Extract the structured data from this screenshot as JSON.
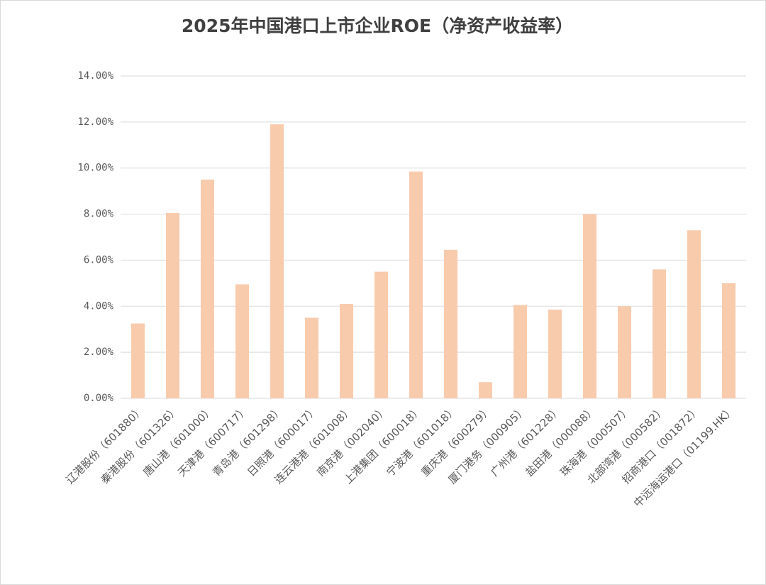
{
  "chart_data": {
    "type": "bar",
    "title": "2025年中国港口上市企业ROE（净资产收益率）",
    "categories": [
      "辽港股份（601880）",
      "秦港股份（601326）",
      "唐山港（601000）",
      "天津港（600717）",
      "青岛港（601298）",
      "日照港（600017）",
      "连云港港（601008）",
      "南京港（002040）",
      "上港集团（600018）",
      "宁波港（601018）",
      "重庆港（600279）",
      "厦门港务（000905）",
      "广州港（601228）",
      "盐田港（000088）",
      "珠海港（000507）",
      "北部湾港（000582）",
      "招商港口（001872）",
      "中远海运港口（01199.HK）"
    ],
    "values": [
      3.25,
      8.05,
      9.5,
      4.95,
      11.9,
      3.5,
      4.1,
      5.5,
      9.85,
      6.45,
      0.7,
      4.05,
      3.85,
      8.0,
      4.0,
      5.6,
      7.3,
      5.0
    ],
    "color": "#f8cbad",
    "ylim": [
      0,
      14
    ],
    "yticks": [
      {
        "value": 0,
        "label": "0.00%"
      },
      {
        "value": 2,
        "label": "2.00%"
      },
      {
        "value": 4,
        "label": "4.00%"
      },
      {
        "value": 6,
        "label": "6.00%"
      },
      {
        "value": 8,
        "label": "8.00%"
      },
      {
        "value": 10,
        "label": "10.00%"
      },
      {
        "value": 12,
        "label": "12.00%"
      },
      {
        "value": 14,
        "label": "14.00%"
      }
    ],
    "grid": true
  }
}
